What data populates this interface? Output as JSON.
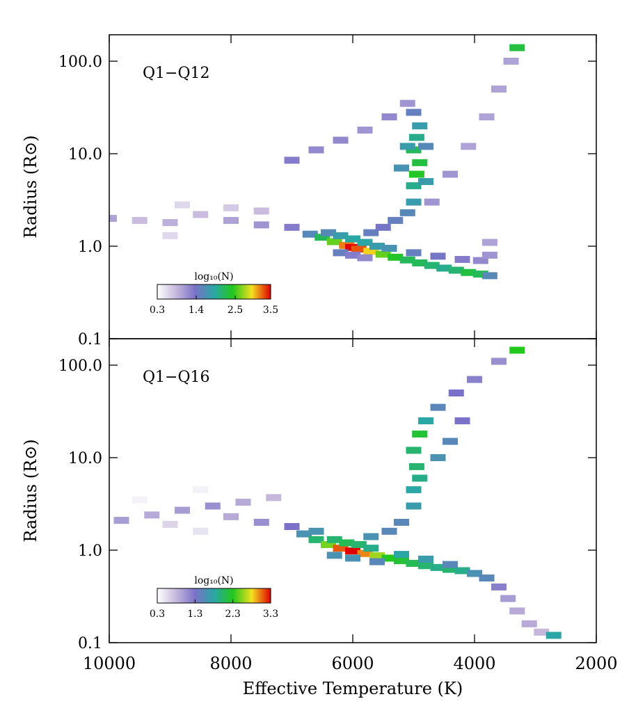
{
  "chart_data": [
    {
      "type": "heatmap",
      "annotation": "Q1−Q12",
      "ylabel": "Radius (R⊙)",
      "xlim": [
        10000,
        2000
      ],
      "xticks": [
        10000,
        8000,
        6000,
        4000,
        2000
      ],
      "ylim": [
        0.1,
        193
      ],
      "log_y": true,
      "yticks": [
        {
          "value": 0.1,
          "label": "0.1"
        },
        {
          "value": 1,
          "label": "1.0"
        },
        {
          "value": 10,
          "label": "10.0"
        },
        {
          "value": 100,
          "label": "100.0"
        }
      ],
      "colorbar_label": "log₁₀(N)",
      "clim": [
        0.3,
        3.5
      ],
      "colorbar_ticks": [
        0.3,
        1.4,
        2.5,
        3.5
      ],
      "colormap": [
        "#ffffff",
        "#c6b8dc",
        "#7a72c8",
        "#2aa6a4",
        "#22c81e",
        "#f2e020",
        "#e00000"
      ],
      "cells": {
        "x": [
          6700,
          6500,
          6300,
          6100,
          6000,
          5900,
          5700,
          5500,
          5300,
          5100,
          4900,
          4700,
          4500,
          4300,
          4100,
          3900,
          3750,
          6400,
          6200,
          6000,
          5800,
          5600,
          6200,
          6000,
          5800,
          5400,
          5000,
          4600,
          4200,
          3900,
          3750,
          3750,
          5700,
          5500,
          5300,
          5100,
          5000,
          5000,
          4950,
          4900,
          5000,
          4950,
          4900,
          5000,
          4800,
          5200,
          5100,
          4800,
          7000,
          6600,
          6200,
          5800,
          5400,
          5100,
          4700,
          4400,
          4100,
          3800,
          3600,
          3400,
          3300,
          10000,
          9500,
          9000,
          8500,
          8000,
          7500,
          7000,
          8800,
          8000,
          7500,
          9000
        ],
        "y": [
          1.35,
          1.25,
          1.12,
          1.02,
          0.97,
          0.93,
          0.88,
          0.82,
          0.76,
          0.71,
          0.66,
          0.62,
          0.58,
          0.55,
          0.52,
          0.5,
          0.48,
          1.4,
          1.3,
          1.2,
          1.1,
          1.0,
          0.85,
          0.8,
          0.75,
          0.95,
          0.85,
          0.78,
          0.72,
          0.7,
          1.1,
          0.8,
          1.4,
          1.6,
          1.9,
          2.3,
          3,
          4.5,
          6,
          8,
          11,
          15,
          20,
          28,
          5,
          7,
          12,
          12,
          8.5,
          11,
          14,
          18,
          25,
          35,
          3,
          6,
          12,
          25,
          50,
          100,
          140,
          2,
          1.9,
          1.8,
          2.2,
          1.9,
          1.7,
          1.6,
          2.8,
          2.6,
          2.4,
          1.3
        ],
        "values": [
          1.6,
          2.2,
          2.6,
          3.2,
          3.5,
          3.3,
          3.0,
          2.6,
          2.4,
          2.2,
          2.2,
          2.1,
          2.0,
          2.1,
          2.3,
          2.2,
          1.6,
          1.6,
          1.8,
          1.9,
          1.9,
          1.8,
          1.5,
          1.3,
          1.2,
          1.7,
          1.5,
          1.4,
          1.3,
          1.2,
          1.0,
          1.1,
          1.5,
          1.4,
          1.5,
          1.6,
          1.8,
          2.0,
          2.4,
          2.3,
          2.2,
          2.0,
          1.8,
          1.5,
          1.8,
          1.7,
          1.8,
          1.6,
          1.3,
          1.2,
          1.2,
          1.1,
          1.2,
          1.1,
          1.1,
          1.1,
          1.0,
          1.0,
          1.0,
          1.0,
          2.3,
          1.0,
          0.8,
          0.9,
          0.8,
          1.0,
          1.1,
          1.3,
          0.6,
          0.7,
          0.8,
          0.6
        ]
      }
    },
    {
      "type": "heatmap",
      "annotation": "Q1−Q16",
      "ylabel": "Radius (R⊙)",
      "xlabel": "Effective Temperature (K)",
      "xlim": [
        10000,
        2000
      ],
      "xticks": [
        10000,
        8000,
        6000,
        4000,
        2000
      ],
      "ylim": [
        0.1,
        193
      ],
      "log_y": true,
      "yticks": [
        {
          "value": 0.1,
          "label": "0.1"
        },
        {
          "value": 1,
          "label": "1.0"
        },
        {
          "value": 10,
          "label": "10.0"
        },
        {
          "value": 100,
          "label": "100.0"
        }
      ],
      "colorbar_label": "log₁₀(N)",
      "clim": [
        0.3,
        3.3
      ],
      "colorbar_ticks": [
        0.3,
        1.3,
        2.3,
        3.3
      ],
      "colormap": [
        "#ffffff",
        "#c6b8dc",
        "#7a72c8",
        "#2aa6a4",
        "#22c81e",
        "#f2e020",
        "#e00000"
      ],
      "cells": {
        "x": [
          6800,
          6600,
          6400,
          6200,
          6000,
          5800,
          5600,
          5400,
          5200,
          5000,
          4800,
          4600,
          4400,
          4200,
          4000,
          3800,
          3600,
          3450,
          3300,
          3100,
          2900,
          2700,
          6600,
          6300,
          6100,
          5900,
          5700,
          6300,
          6000,
          5600,
          5200,
          4800,
          4400,
          5700,
          5400,
          5200,
          5000,
          5000,
          4900,
          4950,
          5000,
          4900,
          4800,
          4600,
          4300,
          4000,
          3600,
          3300,
          4600,
          4400,
          4200,
          9800,
          9300,
          8800,
          8300,
          7800,
          7300,
          8000,
          7500,
          7000,
          9000,
          8500,
          9500,
          8500
        ],
        "y": [
          1.5,
          1.3,
          1.15,
          1.05,
          0.98,
          0.92,
          0.87,
          0.82,
          0.77,
          0.72,
          0.68,
          0.65,
          0.62,
          0.6,
          0.56,
          0.5,
          0.4,
          0.3,
          0.22,
          0.16,
          0.13,
          0.12,
          1.6,
          1.3,
          1.2,
          1.15,
          1.05,
          0.88,
          0.82,
          0.75,
          0.9,
          0.8,
          0.7,
          1.4,
          1.6,
          2,
          3,
          4.5,
          6,
          8,
          12,
          18,
          25,
          35,
          50,
          70,
          110,
          145,
          10,
          15,
          25,
          2.1,
          2.4,
          2.7,
          3.0,
          3.3,
          3.7,
          2.3,
          2.0,
          1.8,
          1.9,
          1.6,
          3.5,
          4.5
        ],
        "values": [
          1.6,
          2.0,
          2.5,
          3.1,
          3.3,
          3.0,
          2.6,
          2.3,
          2.2,
          2.1,
          2.0,
          1.9,
          2.0,
          1.9,
          1.6,
          1.5,
          1.2,
          1.0,
          0.9,
          0.9,
          0.8,
          1.8,
          1.6,
          2.0,
          2.1,
          2.0,
          1.9,
          1.6,
          1.6,
          1.5,
          1.8,
          1.7,
          1.5,
          1.6,
          1.5,
          1.5,
          1.7,
          1.8,
          1.9,
          2.0,
          2.0,
          2.2,
          1.8,
          1.5,
          1.3,
          1.2,
          1.1,
          2.3,
          1.6,
          1.5,
          1.3,
          1.0,
          0.9,
          1.0,
          1.1,
          0.9,
          0.8,
          0.9,
          1.1,
          1.3,
          0.6,
          0.5,
          0.4,
          0.4
        ]
      }
    }
  ]
}
